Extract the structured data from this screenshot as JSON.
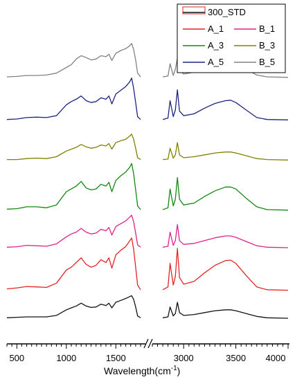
{
  "chart_data": {
    "type": "line",
    "title": "",
    "xlabel": "Wavelength(cm",
    "xlabel_sup": "-1",
    "xlabel_suffix": ")",
    "ylabel": "",
    "x_axis": {
      "segments": [
        {
          "range": [
            400,
            1750
          ],
          "ticks": [
            500,
            1000,
            1500
          ]
        },
        {
          "range": [
            2700,
            4000
          ],
          "ticks": [
            3000,
            3500,
            4000
          ]
        }
      ],
      "break_marker": true
    },
    "grid": false,
    "legend_position": "top-right",
    "legend_order": [
      "300_STD",
      "A_1",
      "B_1",
      "A_3",
      "B_3",
      "A_5",
      "B_5"
    ],
    "series": [
      {
        "name": "B_5",
        "color": "#808080",
        "offset": 0.96,
        "scale": 1.0,
        "x": [
          400,
          500,
          600,
          700,
          800,
          900,
          1000,
          1050,
          1100,
          1150,
          1200,
          1250,
          1300,
          1350,
          1400,
          1430,
          1460,
          1500,
          1550,
          1600,
          1640,
          1660,
          1680,
          1700,
          1720,
          1750,
          2800,
          2850,
          2870,
          2900,
          2920,
          2940,
          2960,
          3000,
          3100,
          3200,
          3300,
          3400,
          3450,
          3500,
          3600,
          3700,
          3800,
          4000
        ],
        "y": [
          0.02,
          0.03,
          0.05,
          0.05,
          0.06,
          0.1,
          0.22,
          0.28,
          0.4,
          0.47,
          0.43,
          0.38,
          0.4,
          0.47,
          0.45,
          0.5,
          0.37,
          0.52,
          0.58,
          0.62,
          0.68,
          0.73,
          0.6,
          0.38,
          0.1,
          0.02,
          0.02,
          0.04,
          0.3,
          0.05,
          0.18,
          0.42,
          0.16,
          0.08,
          0.12,
          0.2,
          0.28,
          0.32,
          0.33,
          0.3,
          0.18,
          0.06,
          0.02,
          0.01
        ]
      },
      {
        "name": "A_5",
        "color": "#1a237e",
        "offset": 0.79,
        "scale": 1.0,
        "x": [
          400,
          500,
          600,
          700,
          800,
          900,
          1000,
          1050,
          1100,
          1150,
          1200,
          1250,
          1300,
          1350,
          1400,
          1430,
          1460,
          1500,
          1550,
          1600,
          1640,
          1660,
          1680,
          1700,
          1720,
          1750,
          2800,
          2850,
          2870,
          2900,
          2920,
          2940,
          2960,
          3000,
          3100,
          3200,
          3300,
          3400,
          3450,
          3500,
          3600,
          3700,
          3800,
          4000
        ],
        "y": [
          0.02,
          0.03,
          0.06,
          0.07,
          0.06,
          0.1,
          0.33,
          0.4,
          0.45,
          0.52,
          0.42,
          0.38,
          0.4,
          0.48,
          0.45,
          0.52,
          0.35,
          0.56,
          0.64,
          0.72,
          0.82,
          0.9,
          0.68,
          0.38,
          0.08,
          0.02,
          0.02,
          0.05,
          0.42,
          0.08,
          0.22,
          0.65,
          0.2,
          0.1,
          0.14,
          0.26,
          0.36,
          0.42,
          0.43,
          0.38,
          0.22,
          0.06,
          0.02,
          0.01
        ]
      },
      {
        "name": "B_3",
        "color": "#808000",
        "offset": 0.63,
        "scale": 1.0,
        "x": [
          400,
          500,
          600,
          700,
          800,
          900,
          1000,
          1050,
          1100,
          1150,
          1200,
          1250,
          1300,
          1350,
          1400,
          1430,
          1460,
          1500,
          1550,
          1600,
          1640,
          1660,
          1680,
          1700,
          1720,
          1750,
          2800,
          2850,
          2870,
          2900,
          2920,
          2940,
          2960,
          3000,
          3100,
          3200,
          3300,
          3400,
          3450,
          3500,
          3600,
          3700,
          3800,
          4000
        ],
        "y": [
          0.02,
          0.02,
          0.04,
          0.05,
          0.04,
          0.08,
          0.2,
          0.24,
          0.28,
          0.34,
          0.29,
          0.26,
          0.28,
          0.33,
          0.31,
          0.36,
          0.24,
          0.38,
          0.42,
          0.45,
          0.52,
          0.56,
          0.45,
          0.26,
          0.06,
          0.02,
          0.02,
          0.03,
          0.26,
          0.05,
          0.12,
          0.38,
          0.12,
          0.06,
          0.08,
          0.12,
          0.16,
          0.18,
          0.18,
          0.16,
          0.1,
          0.04,
          0.02,
          0.01
        ]
      },
      {
        "name": "A_3",
        "color": "#118811",
        "offset": 0.43,
        "scale": 1.0,
        "x": [
          400,
          500,
          600,
          700,
          800,
          900,
          1000,
          1050,
          1100,
          1150,
          1200,
          1250,
          1300,
          1350,
          1400,
          1430,
          1460,
          1500,
          1550,
          1600,
          1640,
          1660,
          1680,
          1700,
          1720,
          1750,
          2800,
          2850,
          2870,
          2900,
          2920,
          2940,
          2960,
          3000,
          3100,
          3200,
          3300,
          3400,
          3450,
          3500,
          3600,
          3700,
          3800,
          4000
        ],
        "y": [
          0.03,
          0.04,
          0.08,
          0.08,
          0.06,
          0.12,
          0.4,
          0.46,
          0.52,
          0.62,
          0.48,
          0.44,
          0.46,
          0.56,
          0.52,
          0.6,
          0.4,
          0.64,
          0.74,
          0.82,
          0.92,
          1.0,
          0.78,
          0.44,
          0.1,
          0.02,
          0.02,
          0.06,
          0.46,
          0.1,
          0.24,
          0.7,
          0.24,
          0.12,
          0.16,
          0.3,
          0.42,
          0.5,
          0.5,
          0.46,
          0.26,
          0.08,
          0.02,
          0.01
        ]
      },
      {
        "name": "B_1",
        "color": "#e0208a",
        "offset": 0.28,
        "scale": 1.0,
        "x": [
          400,
          500,
          600,
          700,
          800,
          900,
          1000,
          1050,
          1100,
          1150,
          1200,
          1250,
          1300,
          1350,
          1400,
          1430,
          1460,
          1500,
          1550,
          1600,
          1640,
          1660,
          1680,
          1700,
          1720,
          1750,
          2800,
          2850,
          2870,
          2900,
          2920,
          2940,
          2960,
          3000,
          3100,
          3200,
          3300,
          3400,
          3450,
          3500,
          3600,
          3700,
          3800,
          4000
        ],
        "y": [
          0.02,
          0.03,
          0.06,
          0.05,
          0.04,
          0.09,
          0.24,
          0.3,
          0.34,
          0.42,
          0.34,
          0.3,
          0.32,
          0.4,
          0.37,
          0.44,
          0.28,
          0.46,
          0.52,
          0.58,
          0.66,
          0.7,
          0.56,
          0.32,
          0.07,
          0.02,
          0.02,
          0.04,
          0.34,
          0.06,
          0.16,
          0.5,
          0.16,
          0.08,
          0.1,
          0.16,
          0.22,
          0.26,
          0.26,
          0.23,
          0.14,
          0.05,
          0.02,
          0.01
        ]
      },
      {
        "name": "A_1",
        "color": "#e52222",
        "offset": 0.11,
        "scale": 1.0,
        "x": [
          400,
          500,
          600,
          700,
          800,
          900,
          1000,
          1050,
          1100,
          1150,
          1200,
          1250,
          1300,
          1350,
          1400,
          1430,
          1460,
          1500,
          1550,
          1600,
          1640,
          1660,
          1680,
          1700,
          1720,
          1750,
          2800,
          2850,
          2870,
          2900,
          2920,
          2940,
          2960,
          3000,
          3100,
          3200,
          3300,
          3400,
          3450,
          3500,
          3600,
          3700,
          3800,
          4000
        ],
        "y": [
          0.04,
          0.06,
          0.09,
          0.08,
          0.07,
          0.16,
          0.44,
          0.5,
          0.6,
          0.7,
          0.56,
          0.5,
          0.54,
          0.66,
          0.6,
          0.7,
          0.48,
          0.76,
          0.86,
          0.94,
          1.06,
          1.12,
          0.88,
          0.5,
          0.12,
          0.02,
          0.02,
          0.08,
          0.58,
          0.12,
          0.3,
          0.9,
          0.28,
          0.14,
          0.2,
          0.38,
          0.54,
          0.64,
          0.65,
          0.58,
          0.32,
          0.08,
          0.02,
          0.01
        ]
      },
      {
        "name": "300_STD",
        "color": "#111111",
        "offset": 0.0,
        "scale": 1.0,
        "x": [
          400,
          500,
          600,
          700,
          800,
          900,
          1000,
          1050,
          1100,
          1150,
          1200,
          1250,
          1300,
          1350,
          1400,
          1430,
          1460,
          1500,
          1550,
          1600,
          1640,
          1660,
          1680,
          1700,
          1720,
          1750,
          2800,
          2850,
          2870,
          2900,
          2920,
          2940,
          2960,
          3000,
          3100,
          3200,
          3300,
          3400,
          3450,
          3500,
          3600,
          3700,
          3800,
          4000
        ],
        "y": [
          0.01,
          0.02,
          0.03,
          0.03,
          0.03,
          0.06,
          0.18,
          0.22,
          0.26,
          0.32,
          0.26,
          0.23,
          0.24,
          0.3,
          0.27,
          0.32,
          0.22,
          0.34,
          0.38,
          0.42,
          0.46,
          0.48,
          0.4,
          0.24,
          0.05,
          0.01,
          0.01,
          0.03,
          0.24,
          0.05,
          0.1,
          0.34,
          0.12,
          0.06,
          0.08,
          0.12,
          0.16,
          0.18,
          0.18,
          0.16,
          0.1,
          0.04,
          0.01,
          0.0
        ]
      }
    ]
  }
}
